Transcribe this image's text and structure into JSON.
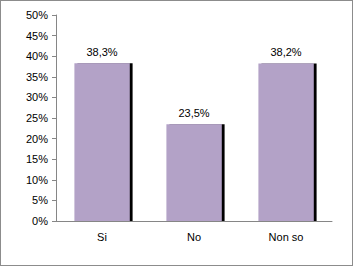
{
  "chart_data": {
    "type": "bar",
    "categories": [
      "Si",
      "No",
      "Non so"
    ],
    "values": [
      38.3,
      23.5,
      38.2
    ],
    "value_labels": [
      "38,3%",
      "23,5%",
      "38,2%"
    ],
    "color": "#b3a2c7",
    "ylim": [
      0,
      50
    ],
    "yticks": [
      {
        "value": 0,
        "label": "0%"
      },
      {
        "value": 5,
        "label": "5%"
      },
      {
        "value": 10,
        "label": "10%"
      },
      {
        "value": 15,
        "label": "15%"
      },
      {
        "value": 20,
        "label": "20%"
      },
      {
        "value": 25,
        "label": "25%"
      },
      {
        "value": 30,
        "label": "30%"
      },
      {
        "value": 35,
        "label": "35%"
      },
      {
        "value": 40,
        "label": "40%"
      },
      {
        "value": 45,
        "label": "45%"
      },
      {
        "value": 50,
        "label": "50%"
      }
    ],
    "grid": false,
    "data_labels": true
  }
}
